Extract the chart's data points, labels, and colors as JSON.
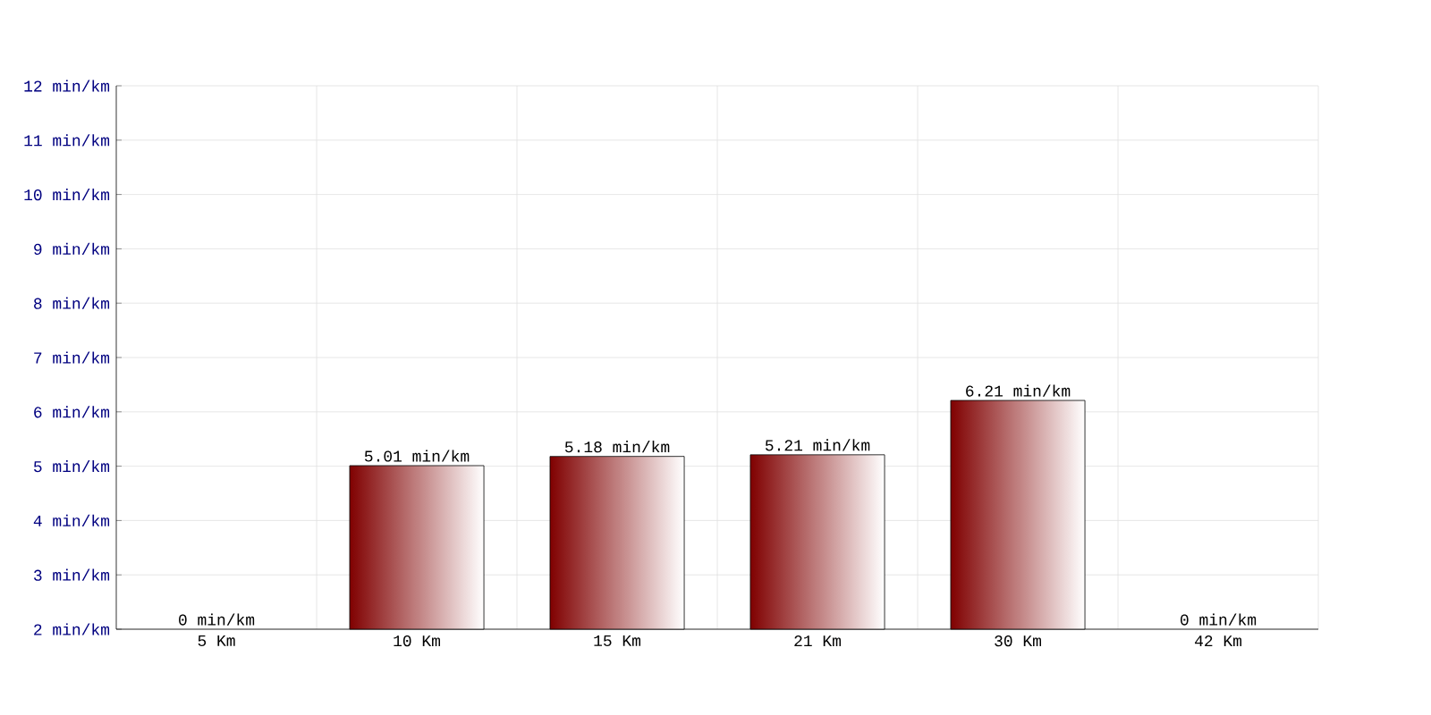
{
  "chart_data": {
    "type": "bar",
    "categories": [
      "5 Km",
      "10 Km",
      "15 Km",
      "21 Km",
      "30 Km",
      "42 Km"
    ],
    "values": [
      null,
      5.01,
      5.18,
      5.21,
      6.21,
      null
    ],
    "value_labels": [
      "0 min/km",
      "5.01 min/km",
      "5.18 min/km",
      "5.21 min/km",
      "6.21 min/km",
      "0 min/km"
    ],
    "color": "#800000",
    "ylim": [
      2,
      12
    ],
    "yticks": [
      {
        "value": 2,
        "label": "2 min/km"
      },
      {
        "value": 3,
        "label": "3 min/km"
      },
      {
        "value": 4,
        "label": "4 min/km"
      },
      {
        "value": 5,
        "label": "5 min/km"
      },
      {
        "value": 6,
        "label": "6 min/km"
      },
      {
        "value": 7,
        "label": "7 min/km"
      },
      {
        "value": 8,
        "label": "8 min/km"
      },
      {
        "value": 9,
        "label": "9 min/km"
      },
      {
        "value": 10,
        "label": "10 min/km"
      },
      {
        "value": 11,
        "label": "11 min/km"
      },
      {
        "value": 12,
        "label": "12 min/km"
      }
    ],
    "grid": true
  }
}
